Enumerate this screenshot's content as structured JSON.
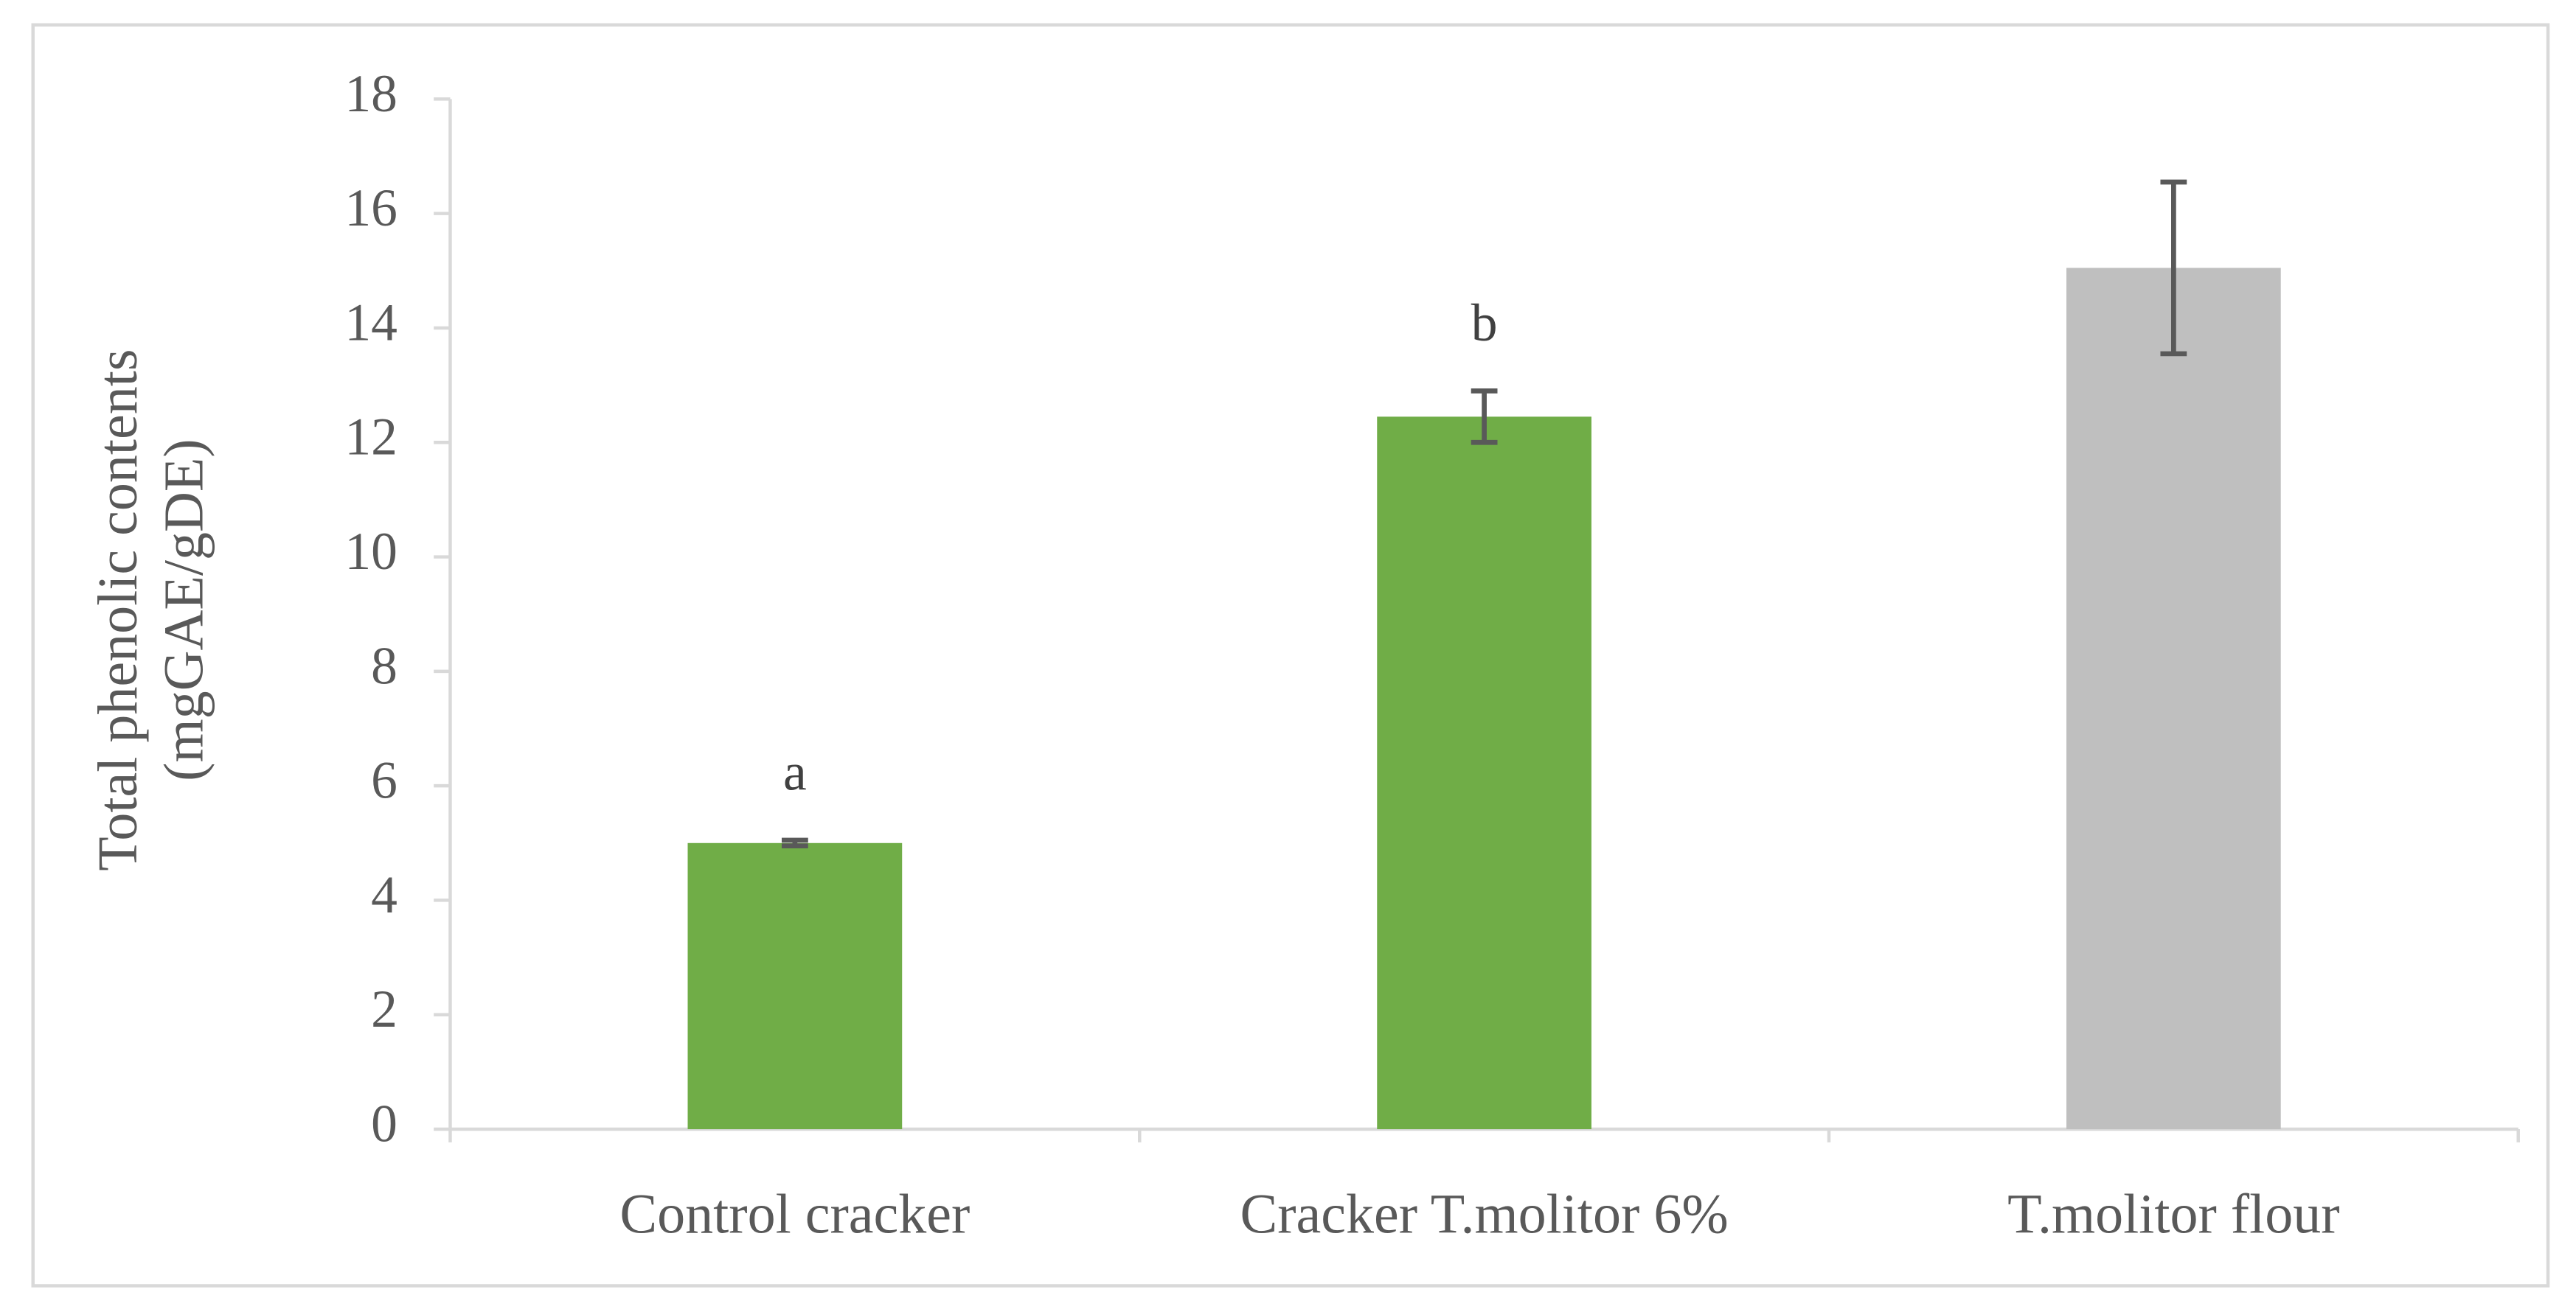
{
  "chart_data": {
    "type": "bar",
    "ylabel": [
      "Total phenolic contents",
      "(mgGAE/gDE)"
    ],
    "categories": [
      "Control cracker",
      "Cracker T.molitor 6%",
      "T.molitor flour"
    ],
    "values": [
      5.0,
      12.45,
      15.05
    ],
    "errors": [
      0.05,
      0.45,
      1.5
    ],
    "group_labels": [
      "a",
      "b",
      null
    ],
    "colors": [
      "#70ad47",
      "#70ad47",
      "#bfbfbf"
    ],
    "ylim": [
      0,
      18
    ],
    "yticks": [
      0,
      2,
      4,
      6,
      8,
      10,
      12,
      14,
      16,
      18
    ],
    "grid": false
  }
}
